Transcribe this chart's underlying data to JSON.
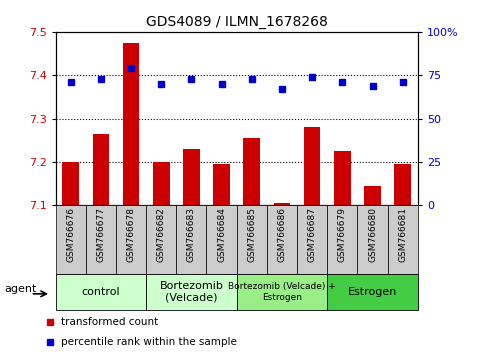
{
  "title": "GDS4089 / ILMN_1678268",
  "samples": [
    "GSM766676",
    "GSM766677",
    "GSM766678",
    "GSM766682",
    "GSM766683",
    "GSM766684",
    "GSM766685",
    "GSM766686",
    "GSM766687",
    "GSM766679",
    "GSM766680",
    "GSM766681"
  ],
  "bar_values": [
    7.2,
    7.265,
    7.475,
    7.2,
    7.23,
    7.195,
    7.255,
    7.105,
    7.28,
    7.225,
    7.145,
    7.195
  ],
  "dot_values": [
    71,
    73,
    79,
    70,
    73,
    70,
    73,
    67,
    74,
    71,
    69,
    71
  ],
  "bar_color": "#cc0000",
  "dot_color": "#0000cc",
  "ylim_left": [
    7.1,
    7.5
  ],
  "ylim_right": [
    0,
    100
  ],
  "yticks_left": [
    7.1,
    7.2,
    7.3,
    7.4,
    7.5
  ],
  "yticks_right": [
    0,
    25,
    50,
    75,
    100
  ],
  "hlines": [
    7.2,
    7.3,
    7.4
  ],
  "groups": [
    {
      "label": "control",
      "start": 0,
      "end": 3,
      "color": "#ccffcc",
      "fontsize": 8
    },
    {
      "label": "Bortezomib\n(Velcade)",
      "start": 3,
      "end": 6,
      "color": "#ccffcc",
      "fontsize": 8
    },
    {
      "label": "Bortezomib (Velcade) +\nEstrogen",
      "start": 6,
      "end": 9,
      "color": "#99ee88",
      "fontsize": 6.5
    },
    {
      "label": "Estrogen",
      "start": 9,
      "end": 12,
      "color": "#44cc44",
      "fontsize": 8
    }
  ],
  "legend_items": [
    {
      "label": "transformed count",
      "color": "#cc0000"
    },
    {
      "label": "percentile rank within the sample",
      "color": "#0000cc"
    }
  ],
  "bar_width": 0.55,
  "tick_bg_color": "#cccccc",
  "title_fontsize": 10
}
